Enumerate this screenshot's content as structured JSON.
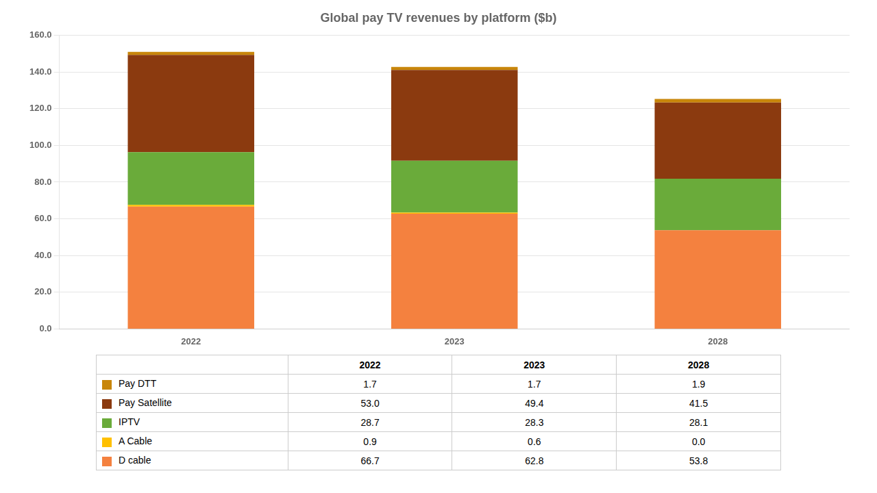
{
  "chart_data": {
    "type": "bar",
    "title": "Global pay TV revenues by platform ($b)",
    "categories": [
      "2022",
      "2023",
      "2028"
    ],
    "stacked": true,
    "series": [
      {
        "name": "D cable",
        "color": "#F4813F",
        "values": [
          66.7,
          62.8,
          53.8
        ],
        "value_labels": [
          "66.7",
          "62.8",
          "53.8"
        ]
      },
      {
        "name": "A Cable",
        "color": "#FFC000",
        "values": [
          0.9,
          0.6,
          0.0
        ],
        "value_labels": [
          "0.9",
          "0.6",
          "0.0"
        ]
      },
      {
        "name": "IPTV",
        "color": "#6AAB3A",
        "values": [
          28.7,
          28.3,
          28.1
        ],
        "value_labels": [
          "28.7",
          "28.3",
          "28.1"
        ]
      },
      {
        "name": "Pay Satellite",
        "color": "#8B3A0F",
        "values": [
          53.0,
          49.4,
          41.5
        ],
        "value_labels": [
          "53.0",
          "49.4",
          "41.5"
        ]
      },
      {
        "name": "Pay DTT",
        "color": "#C8860A",
        "values": [
          1.7,
          1.7,
          1.9
        ],
        "value_labels": [
          "1.7",
          "1.7",
          "1.9"
        ]
      }
    ],
    "ylim": [
      0,
      160
    ],
    "yticks": [
      {
        "value": 0,
        "label": "0.0"
      },
      {
        "value": 20,
        "label": "20.0"
      },
      {
        "value": 40,
        "label": "40.0"
      },
      {
        "value": 60,
        "label": "60.0"
      },
      {
        "value": 80,
        "label": "80.0"
      },
      {
        "value": 100,
        "label": "100.0"
      },
      {
        "value": 120,
        "label": "120.0"
      },
      {
        "value": 140,
        "label": "140.0"
      },
      {
        "value": 160,
        "label": "160.0"
      }
    ],
    "grid": true
  }
}
